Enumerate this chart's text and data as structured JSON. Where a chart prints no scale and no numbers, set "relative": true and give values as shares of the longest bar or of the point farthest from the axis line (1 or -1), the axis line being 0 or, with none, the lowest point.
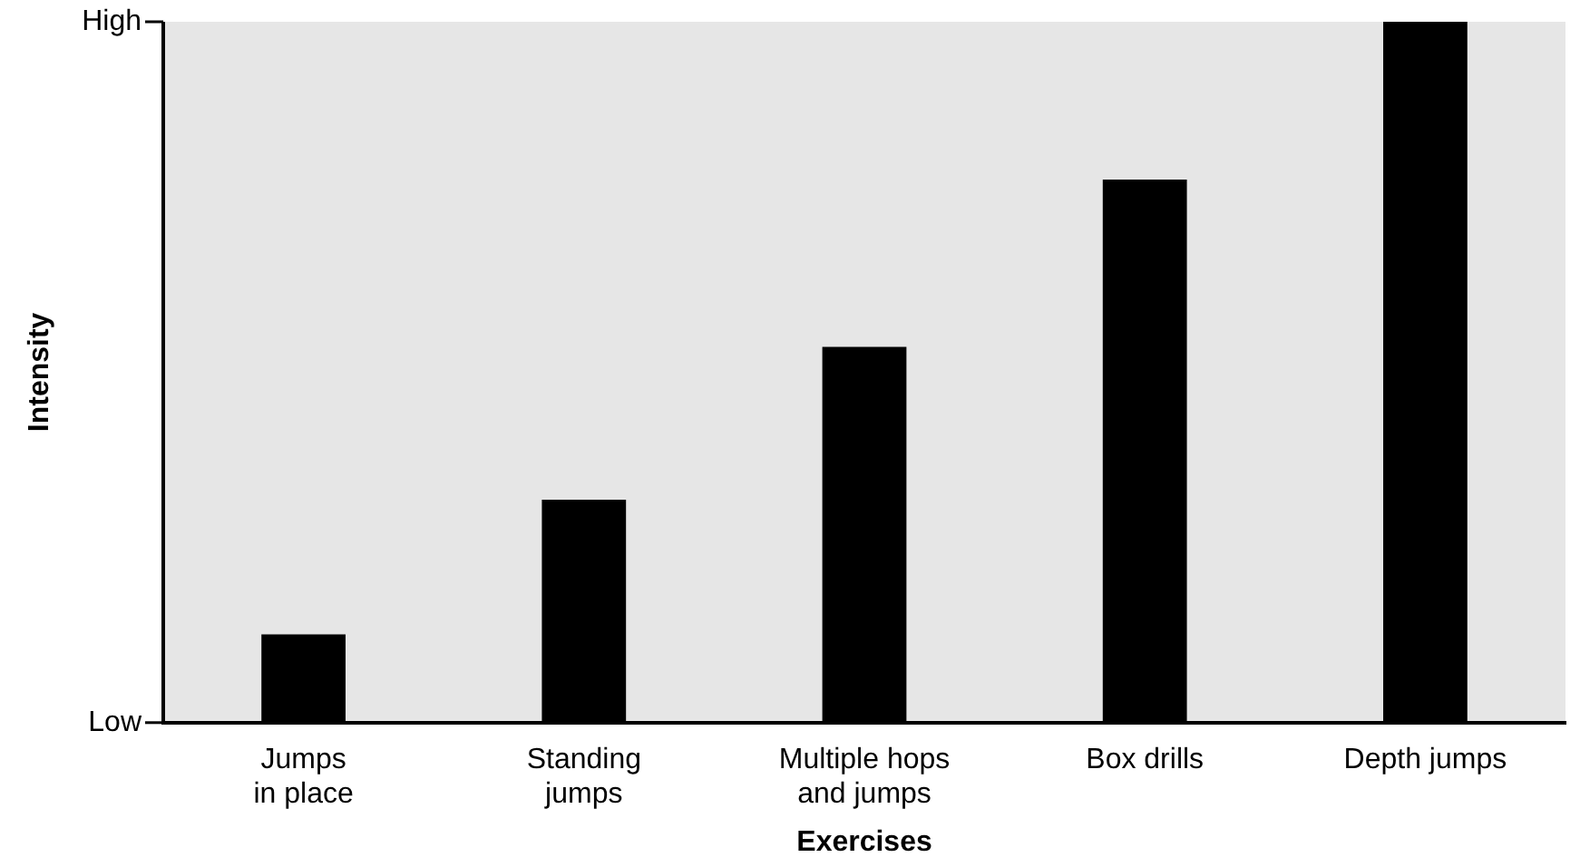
{
  "chart_data": {
    "type": "bar",
    "xlabel": "Exercises",
    "ylabel": "Intensity",
    "categories": [
      "Jumps\nin place",
      "Standing\njumps",
      "Multiple hops\nand jumps",
      "Box drills",
      "Depth jumps"
    ],
    "values": [
      0.126,
      0.318,
      0.536,
      0.775,
      1
    ],
    "color": "#000000",
    "relative": true,
    "annotations": [
      "Low",
      "High"
    ],
    "legend": false
  }
}
